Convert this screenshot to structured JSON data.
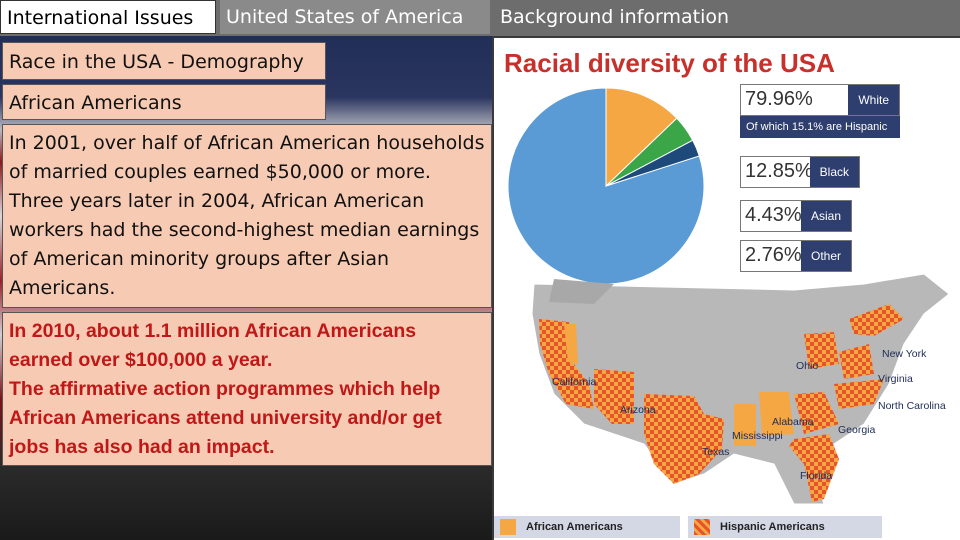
{
  "tabs": [
    "International Issues",
    "United States of America",
    "Background information"
  ],
  "headings": {
    "h1": "Race in the USA - Demography",
    "h2": "African Americans"
  },
  "paragraph1": "In 2001, over half of African American households of married couples earned $50,000 or more. Three years later in 2004, African American workers had the second-highest median earnings of American minority groups after Asian Americans.",
  "paragraph2_lines": [
    "In 2010, about 1.1 million African Americans",
    "earned over $100,000 a year.",
    "The affirmative action programmes which help",
    "African Americans attend university and/or get",
    "jobs has also had an impact."
  ],
  "chart": {
    "title": "Racial diversity of the USA",
    "slices": [
      {
        "pct": "79.96%",
        "label": "White",
        "value": 79.96,
        "color": "#5b9bd5"
      },
      {
        "pct": "12.85%",
        "label": "Black",
        "value": 12.85,
        "color": "#f4a742"
      },
      {
        "pct": "4.43%",
        "label": "Asian",
        "value": 4.43,
        "color": "#3aa648"
      },
      {
        "pct": "2.76%",
        "label": "Other",
        "value": 2.76,
        "color": "#1d4a7a"
      }
    ],
    "hispanic_note": "Of which 15.1% are Hispanic"
  },
  "map": {
    "states": [
      "California",
      "Arizona",
      "Texas",
      "Mississippi",
      "Alabama",
      "Georgia",
      "Florida",
      "Ohio",
      "New York",
      "Virginia",
      "North Carolina"
    ]
  },
  "legend": {
    "african": "African Americans",
    "hispanic": "Hispanic Americans"
  }
}
